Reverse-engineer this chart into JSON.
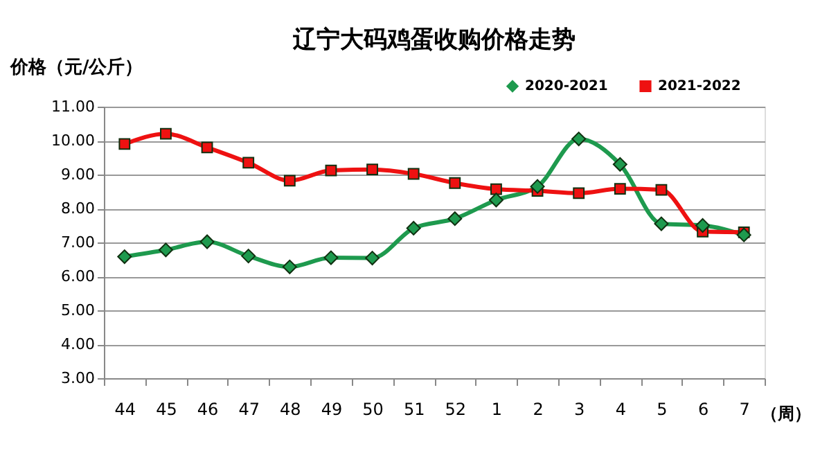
{
  "chart_data": {
    "type": "line",
    "title": "辽宁大码鸡蛋收购价格走势",
    "ylabel": "价格（元/公斤）",
    "xlabel": "（周）",
    "categories": [
      "44",
      "45",
      "46",
      "47",
      "48",
      "49",
      "50",
      "51",
      "52",
      "1",
      "2",
      "3",
      "4",
      "5",
      "6",
      "7"
    ],
    "series": [
      {
        "name": "2020-2021",
        "color": "#1e9a4e",
        "marker": "diamond",
        "values": [
          6.58,
          6.78,
          7.02,
          6.6,
          6.28,
          6.55,
          6.54,
          7.42,
          7.7,
          8.25,
          8.65,
          10.05,
          9.3,
          7.55,
          7.5,
          7.22
        ]
      },
      {
        "name": "2021-2022",
        "color": "#ee1111",
        "marker": "square",
        "values": [
          9.9,
          10.2,
          9.8,
          9.35,
          8.82,
          9.12,
          9.15,
          9.02,
          8.75,
          8.57,
          8.52,
          8.45,
          8.58,
          8.55,
          7.32,
          7.3
        ]
      }
    ],
    "ylim": [
      3,
      11
    ],
    "yticks": [
      {
        "value": 3,
        "label": "3.00"
      },
      {
        "value": 4,
        "label": "4.00"
      },
      {
        "value": 5,
        "label": "5.00"
      },
      {
        "value": 6,
        "label": "6.00"
      },
      {
        "value": 7,
        "label": "7.00"
      },
      {
        "value": 8,
        "label": "8.00"
      },
      {
        "value": 9,
        "label": "9.00"
      },
      {
        "value": 10,
        "label": "10.00"
      },
      {
        "value": 11,
        "label": "11.00"
      }
    ],
    "grid": "y",
    "legend": "top right",
    "line_style": "solid"
  }
}
